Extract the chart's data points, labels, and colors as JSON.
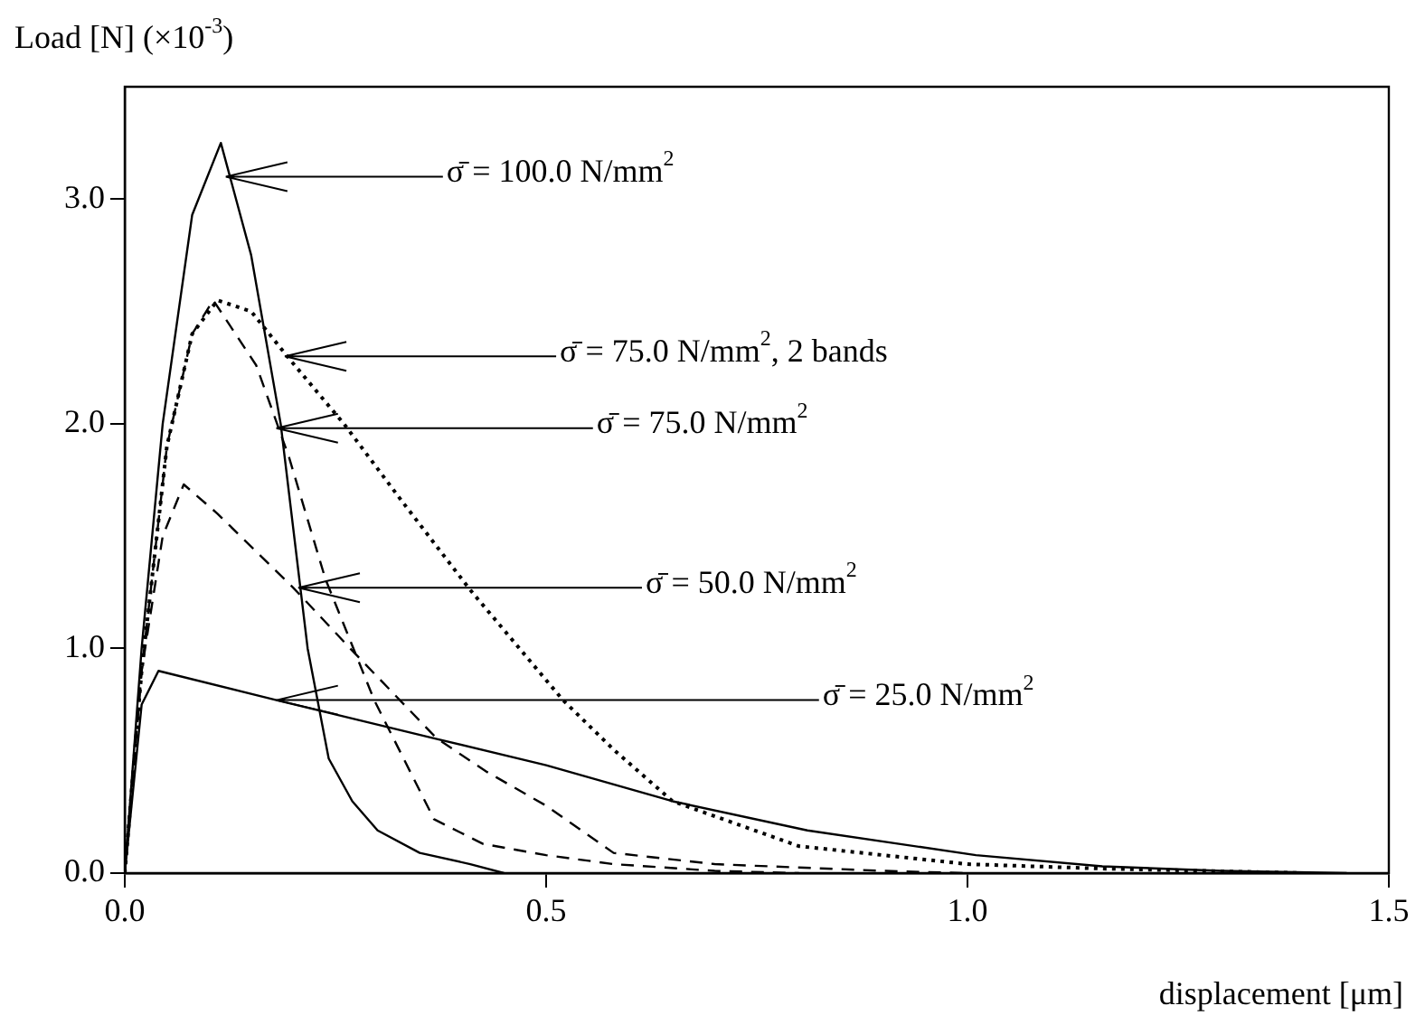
{
  "chart_data": {
    "type": "line",
    "xlabel": "displacement [μm]",
    "ylabel": "Load [N] (×10$^{-3}$)",
    "xlim": [
      0,
      1.5
    ],
    "xticks": [
      {
        "value": 0,
        "label": "0.0"
      },
      0.5,
      {
        "value": 1,
        "label": "1.0"
      },
      1.5
    ],
    "ylim": [
      0,
      3.5
    ],
    "yticks": [
      {
        "value": 0,
        "label": "0.0"
      },
      {
        "value": 1,
        "label": "1.0"
      },
      {
        "value": 2,
        "label": "2.0"
      },
      {
        "value": 3,
        "label": "3.0"
      }
    ],
    "grid": false,
    "legend": false,
    "marker": "none",
    "series": [
      {
        "color": "#000000",
        "line_style": "solid",
        "x": [
          0,
          0.02,
          0.045,
          0.08,
          0.114,
          0.15,
          0.185,
          0.217,
          0.242,
          0.27,
          0.3,
          0.35,
          0.41,
          0.45
        ],
        "values": [
          0,
          1.0,
          2.0,
          2.93,
          3.25,
          2.75,
          2.0,
          1.0,
          0.51,
          0.32,
          0.19,
          0.09,
          0.04,
          0
        ]
      },
      {
        "color": "#000000",
        "line_style": "dotted",
        "x": [
          0,
          0.02,
          0.05,
          0.08,
          0.11,
          0.15,
          0.195,
          0.26,
          0.33,
          0.41,
          0.52,
          0.58,
          0.65,
          0.8,
          1.0,
          1.16,
          1.4
        ],
        "values": [
          0,
          0.9,
          1.9,
          2.4,
          2.55,
          2.5,
          2.29,
          2.0,
          1.65,
          1.26,
          0.77,
          0.55,
          0.32,
          0.12,
          0.04,
          0.02,
          0
        ]
      },
      {
        "color": "#000000",
        "line_style": "dashed",
        "x": [
          0,
          0.02,
          0.05,
          0.08,
          0.105,
          0.156,
          0.195,
          0.238,
          0.296,
          0.367,
          0.425,
          0.5,
          0.58,
          0.7,
          0.8
        ],
        "values": [
          0,
          0.9,
          1.9,
          2.4,
          2.55,
          2.26,
          1.85,
          1.31,
          0.77,
          0.24,
          0.13,
          0.08,
          0.04,
          0.01,
          0
        ]
      },
      {
        "color": "#000000",
        "line_style": "dashed",
        "x": [
          0,
          0.02,
          0.045,
          0.07,
          0.11,
          0.2,
          0.27,
          0.37,
          0.43,
          0.5,
          0.58,
          0.7,
          0.9,
          1.0
        ],
        "values": [
          0,
          0.9,
          1.5,
          1.73,
          1.6,
          1.27,
          0.99,
          0.6,
          0.45,
          0.3,
          0.09,
          0.04,
          0.01,
          0
        ]
      },
      {
        "color": "#000000",
        "line_style": "solid",
        "x": [
          0,
          0.02,
          0.04,
          0.18,
          0.367,
          0.5,
          0.65,
          0.81,
          1.01,
          1.16,
          1.3,
          1.45
        ],
        "values": [
          0,
          0.75,
          0.9,
          0.77,
          0.6,
          0.48,
          0.32,
          0.19,
          0.08,
          0.03,
          0.01,
          0
        ]
      }
    ],
    "annotations": [
      {
        "text": "σ̄ = 100.0 N/mm$^{2}$",
        "x": 0.12,
        "y": 3.1
      },
      {
        "text": "σ̄ = 75.0 N/mm$^{2}$, 2 bands",
        "x": 0.19,
        "y": 2.3
      },
      {
        "text": "σ̄ = 75.0 N/mm$^{2}$",
        "x": 0.18,
        "y": 1.98
      },
      {
        "text": "σ̄ = 50.0 N/mm$^{2}$",
        "x": 0.206,
        "y": 1.27
      },
      {
        "text": "σ̄ = 25.0 N/mm$^{2}$",
        "x": 0.18,
        "y": 0.77
      }
    ]
  }
}
